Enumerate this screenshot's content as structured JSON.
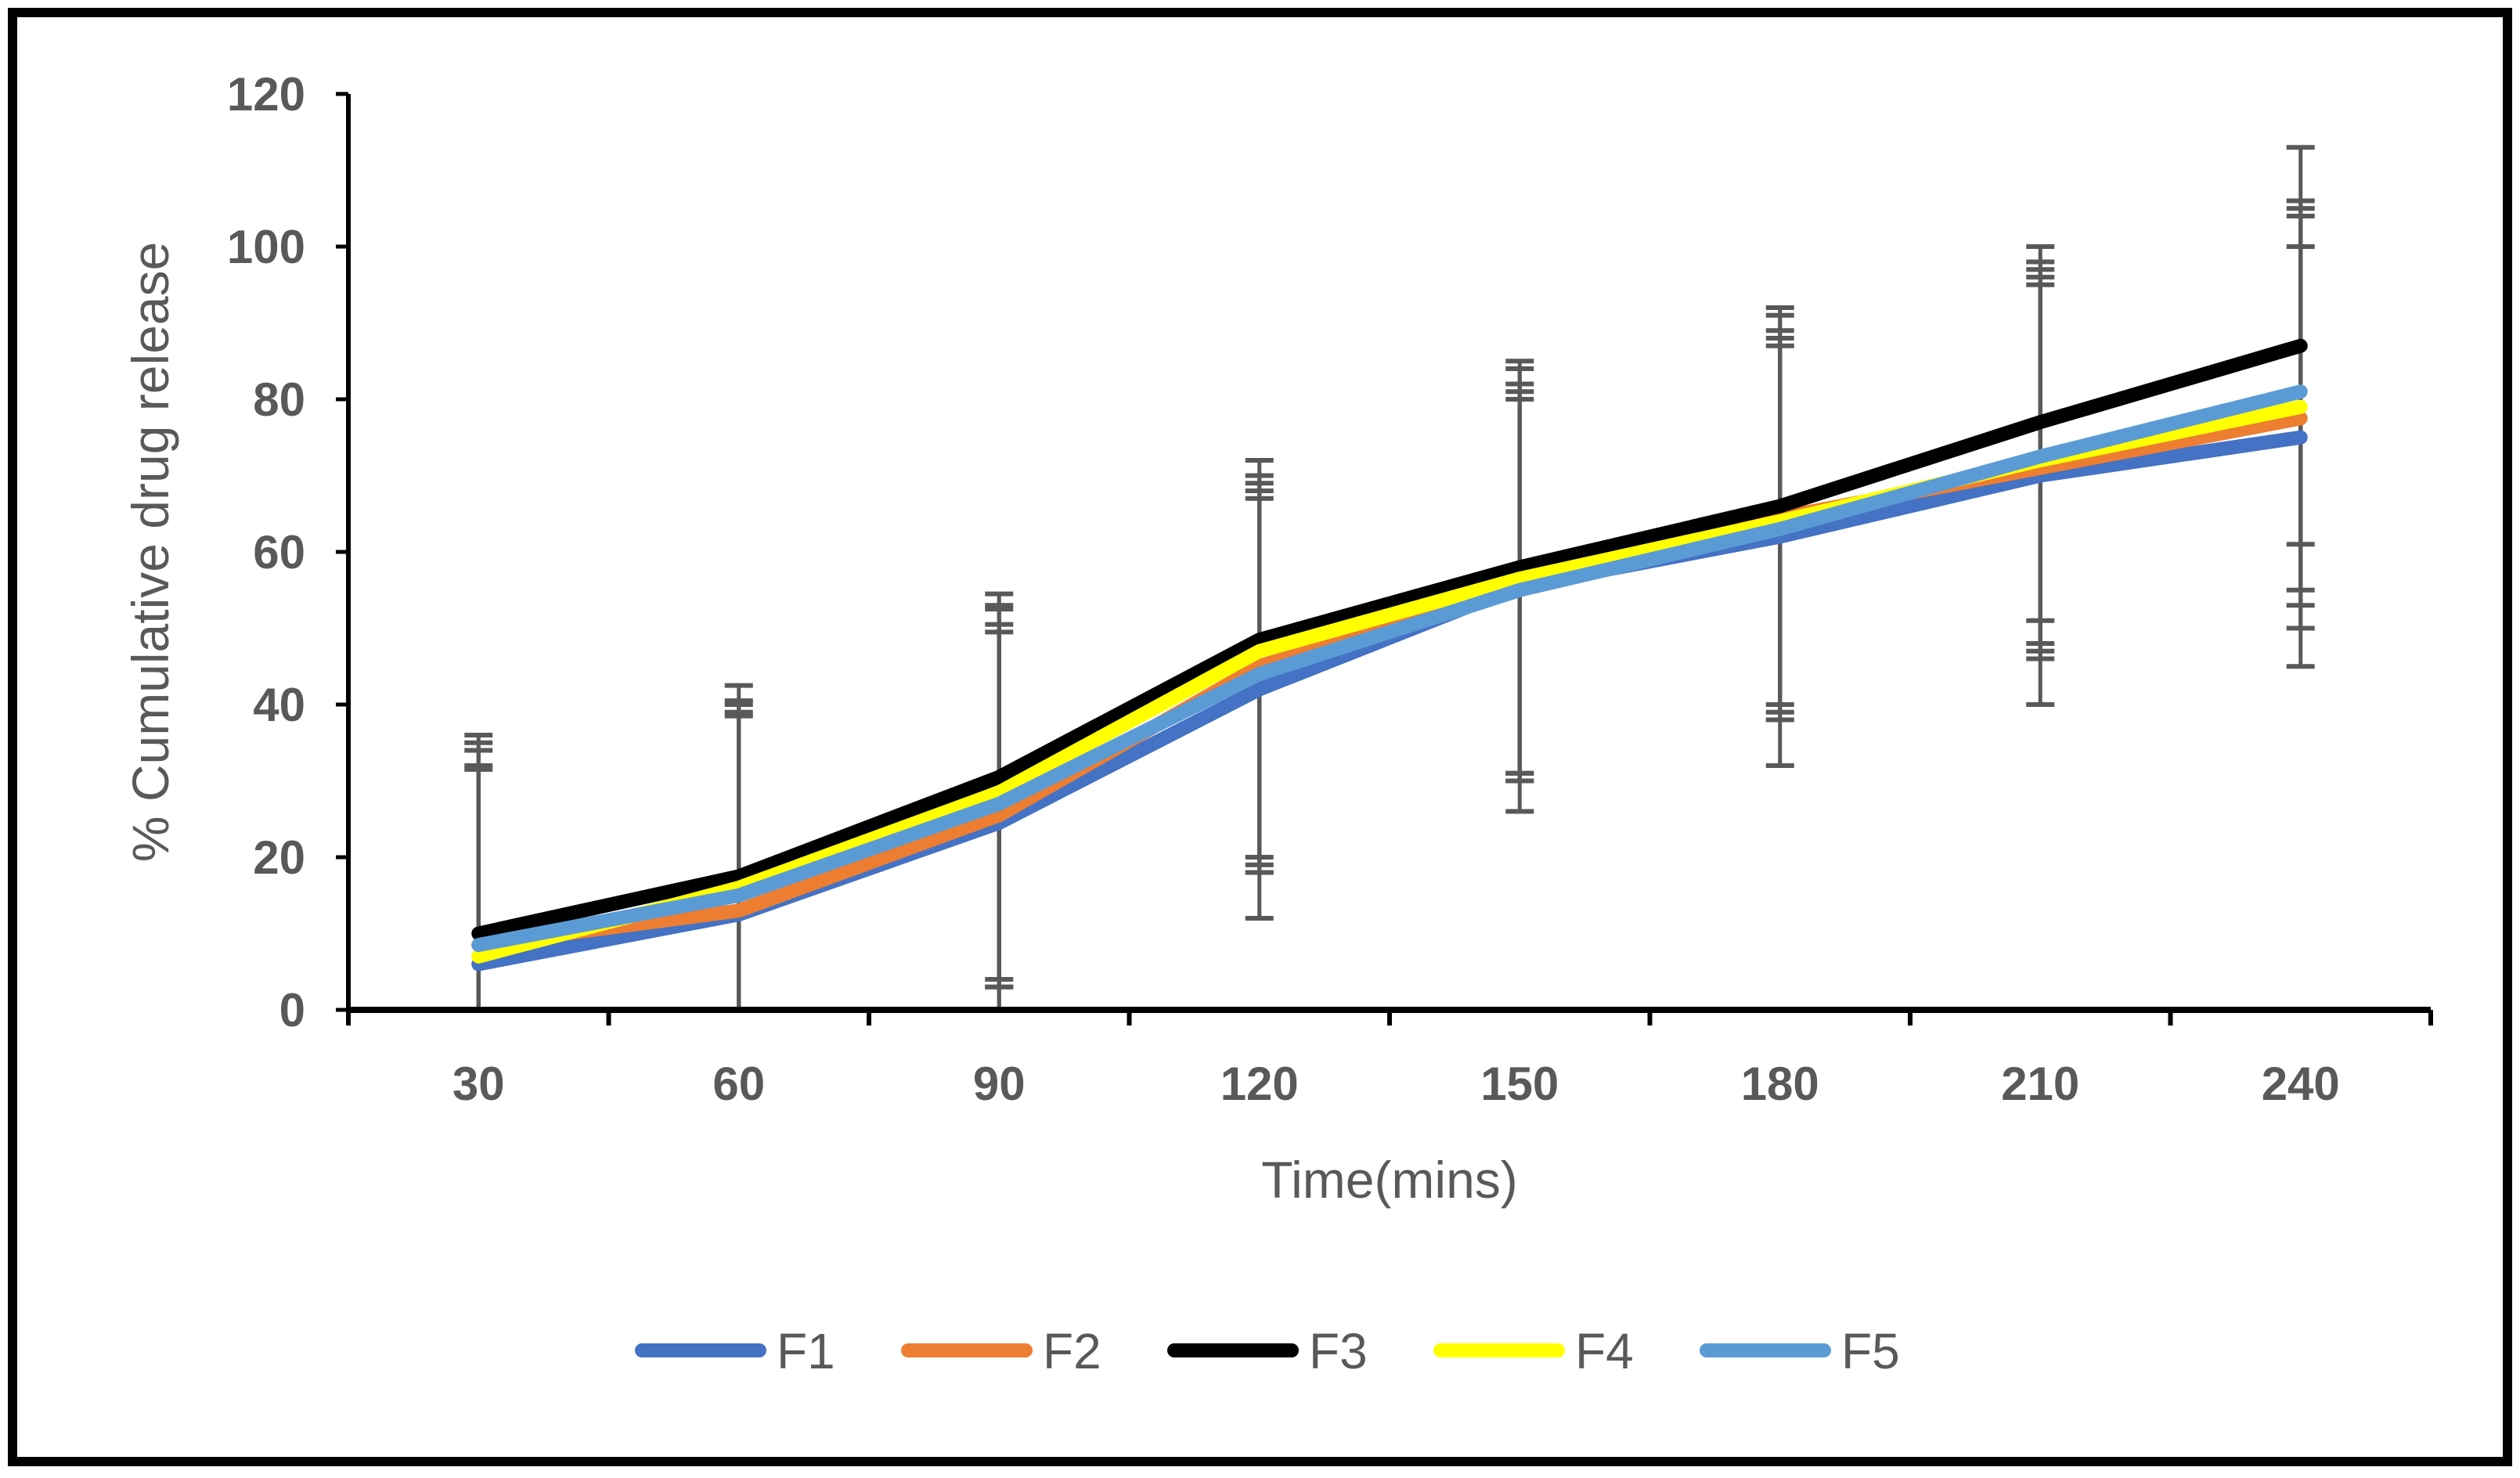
{
  "chart_data": {
    "type": "line",
    "title": "",
    "xlabel": "Time(mins)",
    "ylabel": "% Cumulative drug release",
    "categories": [
      "30",
      "60",
      "90",
      "120",
      "150",
      "180",
      "210",
      "240"
    ],
    "ylim": [
      0,
      120
    ],
    "yticks": [
      0,
      20,
      40,
      60,
      80,
      100,
      120
    ],
    "grid": false,
    "legend": "bottom",
    "series": [
      {
        "name": "F1",
        "color": "#4472C4",
        "values": [
          6,
          12.5,
          24.5,
          42,
          55.5,
          62,
          70,
          75
        ],
        "err_upper": [
          36,
          42.5,
          54.5,
          72,
          85,
          92,
          100,
          105
        ],
        "err_lower": [
          0,
          0,
          0,
          12,
          26,
          32,
          40,
          45
        ]
      },
      {
        "name": "F2",
        "color": "#ED7D31",
        "values": [
          8.5,
          13,
          25.5,
          45,
          56,
          64.5,
          71,
          77.5
        ],
        "err_upper": [
          35,
          40.5,
          53,
          70,
          84,
          91,
          98,
          106
        ],
        "err_lower": [
          0,
          0,
          0,
          18,
          30,
          38,
          47,
          50
        ]
      },
      {
        "name": "F3",
        "color": "#000000",
        "values": [
          10,
          17.5,
          30.5,
          48.5,
          58,
          66,
          77,
          87
        ],
        "err_upper": [
          34,
          40,
          52.5,
          69,
          82,
          89,
          97,
          113
        ],
        "err_lower": [
          0,
          0,
          3,
          20,
          31,
          39,
          48,
          53
        ]
      },
      {
        "name": "F4",
        "color": "#FFFF00",
        "values": [
          7,
          16,
          28.5,
          47,
          56.5,
          64,
          72,
          79
        ],
        "err_upper": [
          32,
          39,
          50.5,
          68,
          81,
          88,
          96,
          104
        ],
        "err_lower": [
          0,
          0,
          3,
          18,
          31,
          38,
          46,
          55
        ]
      },
      {
        "name": "F5",
        "color": "#5B9BD5",
        "values": [
          8.5,
          15,
          27,
          44,
          55,
          63,
          72.5,
          81
        ],
        "err_upper": [
          31.5,
          38.5,
          49.5,
          67,
          80,
          87,
          95,
          100
        ],
        "err_lower": [
          0,
          0,
          4,
          19,
          30,
          40,
          51,
          61
        ]
      }
    ]
  }
}
